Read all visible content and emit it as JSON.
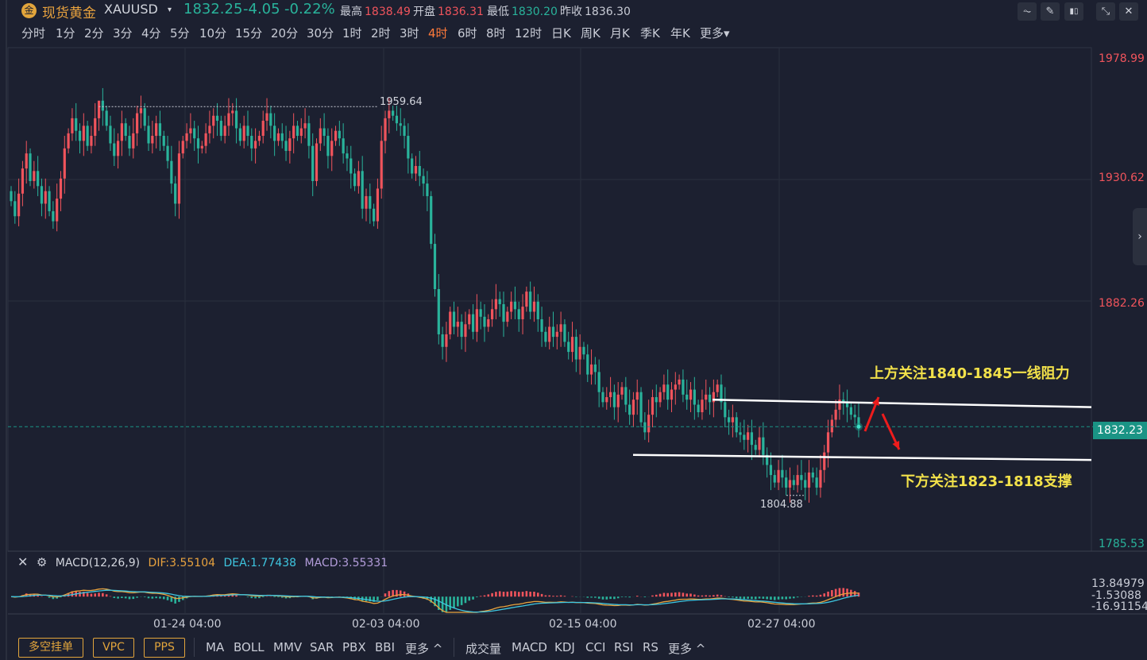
{
  "header": {
    "logo_glyph": "金",
    "name": "现货黄金",
    "code": "XAUUSD",
    "caret": "▾",
    "price": "1832.25",
    "change": "-4.05",
    "change_pct": "-0.22%",
    "stats": [
      {
        "label": "最高",
        "value": "1838.49",
        "color": "#f0545c"
      },
      {
        "label": "开盘",
        "value": "1836.31",
        "color": "#f0545c"
      },
      {
        "label": "最低",
        "value": "1830.20",
        "color": "#29b39b"
      },
      {
        "label": "昨收",
        "value": "1836.30",
        "color": "#c9ccd6"
      }
    ],
    "tools": [
      {
        "name": "line-chart-icon",
        "glyph": "⏦"
      },
      {
        "name": "draw-pen-icon",
        "glyph": "✎"
      },
      {
        "name": "candlestick-icon",
        "glyph": "▮▯"
      },
      {
        "name": "collapse-icon",
        "glyph": "⤡"
      },
      {
        "name": "close-icon",
        "glyph": "✕"
      }
    ]
  },
  "periods": [
    "分时",
    "1分",
    "2分",
    "3分",
    "4分",
    "5分",
    "10分",
    "15分",
    "20分",
    "30分",
    "1时",
    "2时",
    "3时",
    "4时",
    "6时",
    "8时",
    "12时",
    "日K",
    "周K",
    "月K",
    "季K",
    "年K",
    "更多▾"
  ],
  "active_period": "4时",
  "colors": {
    "up": "#f0545c",
    "down": "#29b39b",
    "dif": "#e8a23e",
    "dea": "#3ec6e0",
    "macd": "#b39ddb"
  },
  "current_price_tag": "1832.23",
  "high_label": "1959.64",
  "low_label": "1804.88",
  "side_tab_glyph": "›",
  "annotations": {
    "resistance": "上方关注1840-1845一线阻力",
    "support": "下方关注1823-1818支撑"
  },
  "macd_legend": {
    "close_glyph": "✕",
    "settings_glyph": "⚙",
    "name": "MACD(12,26,9)",
    "dif": "DIF:3.55104",
    "dea": "DEA:1.77438",
    "macd": "MACD:3.55331"
  },
  "macd_ticks": [
    "13.84979",
    "-1.53088",
    "-16.91154"
  ],
  "bottom_bar": {
    "order_buttons": [
      "多空挂单",
      "VPC",
      "PPS"
    ],
    "main_indicators": [
      "MA",
      "BOLL",
      "MMV",
      "SAR",
      "PBX",
      "BBI",
      "更多 ^"
    ],
    "sub_indicators": [
      "成交量",
      "MACD",
      "KDJ",
      "CCI",
      "RSI",
      "RS",
      "更多 ^"
    ]
  },
  "chart_data": {
    "type": "candlestick",
    "symbol": "XAUUSD",
    "interval": "4时",
    "y_ticks": [
      "1978.99",
      "1930.62",
      "1882.26",
      "1832.23",
      "1785.53"
    ],
    "ylim": [
      1785.53,
      1978.99
    ],
    "x_ticks": [
      "01-24 04:00",
      "02-03 04:00",
      "02-15 04:00",
      "02-27 04:00"
    ],
    "grid": true,
    "period_high": 1959.64,
    "period_low": 1804.88,
    "current_price": 1832.23,
    "resistance_line": [
      1843,
      1840
    ],
    "support_line": [
      1821,
      1819
    ],
    "closes": [
      1922,
      1916,
      1925,
      1935,
      1941,
      1930,
      1934,
      1928,
      1921,
      1926,
      1918,
      1914,
      1923,
      1931,
      1943,
      1949,
      1955,
      1950,
      1946,
      1952,
      1944,
      1948,
      1955,
      1962,
      1958,
      1952,
      1945,
      1940,
      1946,
      1953,
      1948,
      1943,
      1949,
      1957,
      1959,
      1952,
      1945,
      1948,
      1953,
      1948,
      1944,
      1938,
      1929,
      1921,
      1941,
      1946,
      1949,
      1951,
      1947,
      1943,
      1944,
      1949,
      1952,
      1956,
      1954,
      1948,
      1952,
      1957,
      1958,
      1951,
      1946,
      1952,
      1948,
      1943,
      1946,
      1948,
      1954,
      1957,
      1952,
      1946,
      1949,
      1946,
      1942,
      1947,
      1952,
      1948,
      1951,
      1953,
      1944,
      1930,
      1945,
      1951,
      1948,
      1940,
      1946,
      1950,
      1947,
      1941,
      1939,
      1933,
      1928,
      1934,
      1919,
      1924,
      1919,
      1914,
      1927,
      1946,
      1955,
      1958,
      1956,
      1953,
      1952,
      1948,
      1939,
      1933,
      1936,
      1932,
      1929,
      1924,
      1905,
      1887,
      1869,
      1864,
      1869,
      1878,
      1872,
      1874,
      1868,
      1873,
      1877,
      1870,
      1879,
      1876,
      1872,
      1875,
      1879,
      1883,
      1881,
      1874,
      1878,
      1882,
      1879,
      1875,
      1880,
      1886,
      1878,
      1882,
      1875,
      1870,
      1866,
      1872,
      1868,
      1870,
      1873,
      1866,
      1862,
      1868,
      1859,
      1864,
      1861,
      1853,
      1857,
      1854,
      1846,
      1842,
      1844,
      1846,
      1840,
      1845,
      1848,
      1841,
      1837,
      1843,
      1846,
      1834,
      1830,
      1837,
      1844,
      1842,
      1846,
      1849,
      1843,
      1847,
      1849,
      1851,
      1845,
      1843,
      1847,
      1841,
      1838,
      1843,
      1845,
      1842,
      1846,
      1849,
      1842,
      1836,
      1834,
      1836,
      1830,
      1829,
      1827,
      1830,
      1825,
      1823,
      1828,
      1821,
      1817,
      1813,
      1810,
      1815,
      1812,
      1808,
      1811,
      1809,
      1813,
      1811,
      1808,
      1814,
      1812,
      1808,
      1815,
      1822,
      1830,
      1835,
      1839,
      1843,
      1842,
      1840,
      1837,
      1836,
      1832
    ]
  }
}
